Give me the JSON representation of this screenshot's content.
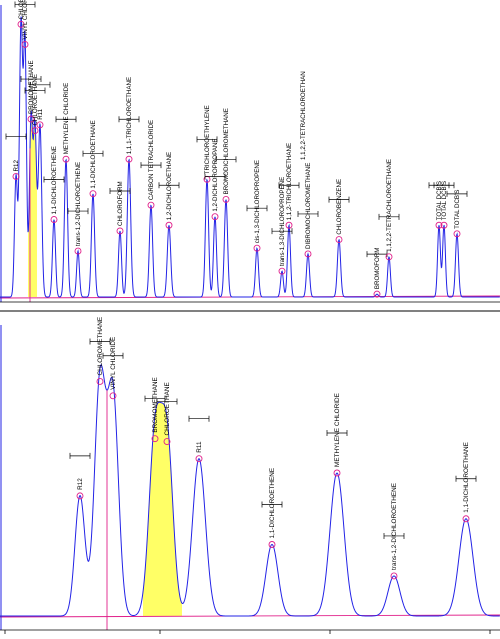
{
  "colors": {
    "trace": "#2323e6",
    "baseline": "#e0208a",
    "marker": "#e0208a",
    "highlight": "#ffff66",
    "axis": "#000000",
    "divider": "#000000"
  },
  "chart_data": [
    {
      "type": "line",
      "title": "",
      "xlim": [
        0,
        500
      ],
      "ylim": [
        0,
        100
      ],
      "peaks": [
        {
          "x": 16,
          "h": 42,
          "w": 1.5,
          "label": "R12"
        },
        {
          "x": 21,
          "h": 95,
          "w": 1.6,
          "label": "CHLOROMETHANE"
        },
        {
          "x": 25,
          "h": 88,
          "w": 1.5,
          "label": "VINYL CHLORIDE"
        },
        {
          "x": 31,
          "h": 62,
          "w": 1.6,
          "label": "BROMOMETHANE"
        },
        {
          "x": 35,
          "h": 58,
          "w": 1.6,
          "label": "CHLOROETHANE"
        },
        {
          "x": 40,
          "h": 60,
          "w": 1.7,
          "label": "R11"
        },
        {
          "x": 54,
          "h": 27,
          "w": 1.5,
          "label": "1,1-DICHLOROETHENE"
        },
        {
          "x": 66,
          "h": 48,
          "w": 1.6,
          "label": "METHYLENE CHLORIDE"
        },
        {
          "x": 78,
          "h": 16,
          "w": 1.4,
          "label": "trans-1,2-DICHLOROETHENE"
        },
        {
          "x": 93,
          "h": 36,
          "w": 1.6,
          "label": "1,1-DICHLOROETHANE"
        },
        {
          "x": 120,
          "h": 23,
          "w": 1.5,
          "label": "CHLOROFORM"
        },
        {
          "x": 129,
          "h": 48,
          "w": 1.7,
          "label": "1,1,1-TRICHLOROETHANE"
        },
        {
          "x": 151,
          "h": 32,
          "w": 1.6,
          "label": "CARBON TETRACHLORIDE"
        },
        {
          "x": 169,
          "h": 25,
          "w": 1.7,
          "label": "1,2-DICHLOROETHANE"
        },
        {
          "x": 207,
          "h": 41,
          "w": 1.6,
          "label": "TRICHLOROETHYLENE"
        },
        {
          "x": 215,
          "h": 28,
          "w": 1.5,
          "label": "1,2-DICHLOROPROPANE"
        },
        {
          "x": 226,
          "h": 34,
          "w": 1.6,
          "label": "BROMODICHLOROMETHANE"
        },
        {
          "x": 257,
          "h": 17,
          "w": 1.5,
          "label": "cis-1,3-DICHLOROPROPENE"
        },
        {
          "x": 282,
          "h": 9,
          "w": 1.4,
          "label": "trans-1,3-DICHLOROPROPENE"
        },
        {
          "x": 289,
          "h": 25,
          "w": 1.5,
          "label": "1,1,2-TRICHLOROETHANE"
        },
        {
          "x": 308,
          "h": 15,
          "w": 1.5,
          "label": "DIBROMOCHLOROMETHANE"
        },
        {
          "x": 339,
          "h": 20,
          "w": 1.6,
          "label": "CHLOROBENZENE"
        },
        {
          "x": 377,
          "h": 1,
          "w": 1.3,
          "label": "BROMOFORM"
        },
        {
          "x": 389,
          "h": 14,
          "w": 1.4,
          "label": "1,1,2,2-TETRACHLOROETHANE"
        },
        {
          "x": 439,
          "h": 25,
          "w": 1.4,
          "label": "TOTAL DCB'S"
        },
        {
          "x": 444,
          "h": 25,
          "w": 1.4,
          "label": "TOTAL DCB'S"
        },
        {
          "x": 457,
          "h": 22,
          "w": 1.5,
          "label": "TOTAL DCB'S"
        }
      ],
      "extra_labels": [
        {
          "x": 303,
          "label": "1,1,2,2-TETRACHLOROETHAN"
        }
      ]
    },
    {
      "type": "line",
      "title": "",
      "xlim": [
        0,
        500
      ],
      "ylim": [
        0,
        100
      ],
      "peaks": [
        {
          "x": 80,
          "h": 42,
          "w": 5,
          "label": "R12"
        },
        {
          "x": 100,
          "h": 82,
          "w": 5.5,
          "label": "CHLOROMETHANE"
        },
        {
          "x": 113,
          "h": 77,
          "w": 5.5,
          "label": "VINYL CHLORIDE"
        },
        {
          "x": 155,
          "h": 62,
          "w": 6,
          "label": "BROMOMETHANE"
        },
        {
          "x": 167,
          "h": 61,
          "w": 6,
          "label": "CHLOROETHANE"
        },
        {
          "x": 199,
          "h": 55,
          "w": 6.5,
          "label": "R11"
        },
        {
          "x": 272,
          "h": 25,
          "w": 6,
          "label": "1,1-DICHLOROETHENE"
        },
        {
          "x": 337,
          "h": 50,
          "w": 7,
          "label": "METHYLENE CHLORIDE"
        },
        {
          "x": 394,
          "h": 14,
          "w": 6,
          "label": "trans-1,2-DICHLOROETHENE"
        },
        {
          "x": 466,
          "h": 34,
          "w": 7,
          "label": "1,1-DICHLOROETHANE"
        }
      ],
      "extra_labels": []
    }
  ]
}
